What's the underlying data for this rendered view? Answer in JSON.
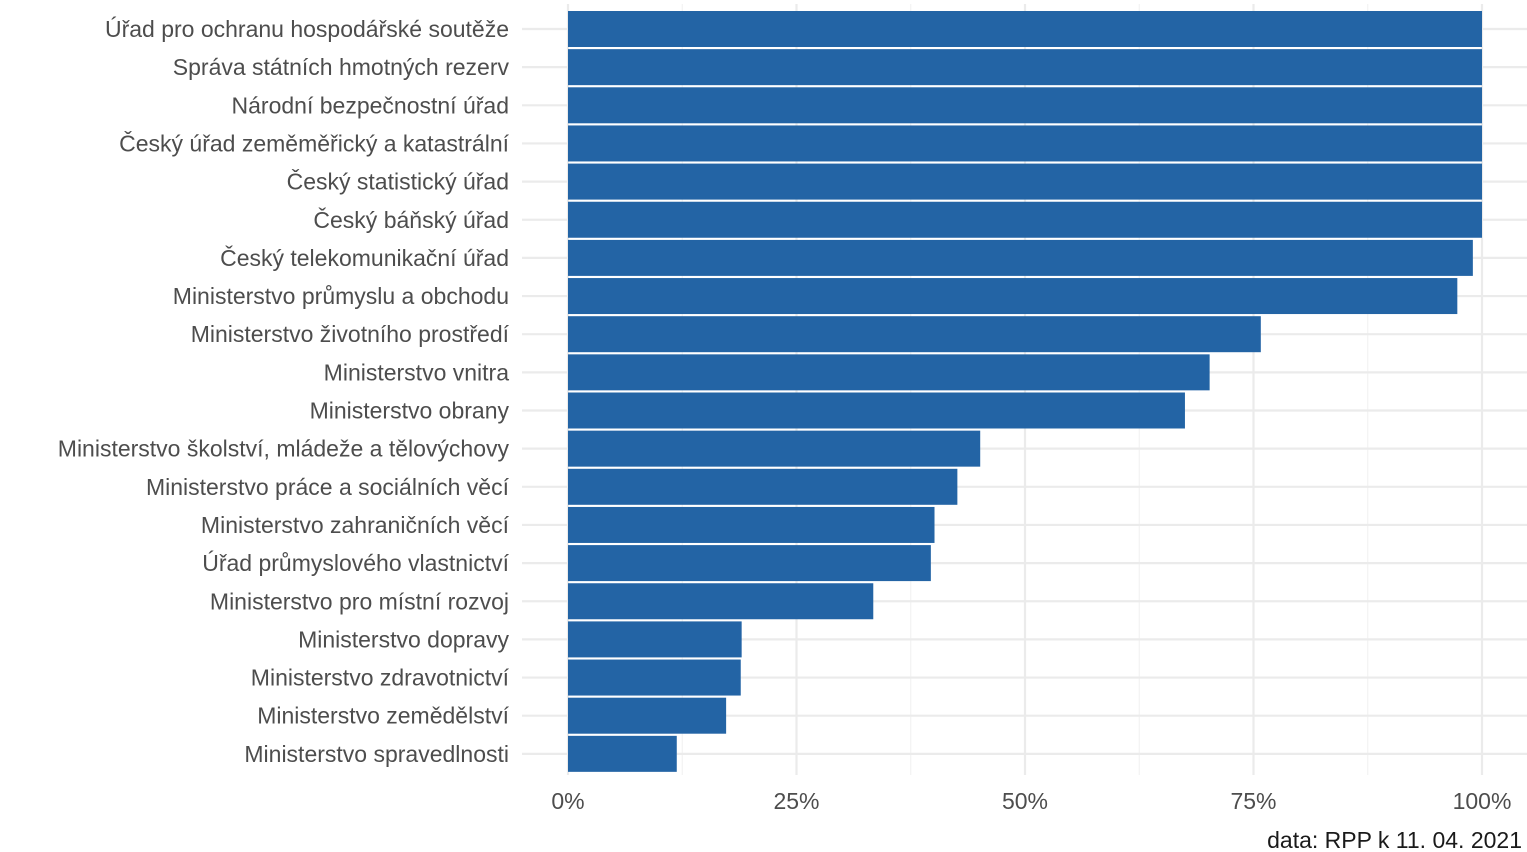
{
  "chart_data": {
    "type": "bar",
    "orientation": "horizontal",
    "categories": [
      "Úřad pro ochranu hospodářské soutěže",
      "Správa státních hmotných rezerv",
      "Národní bezpečnostní úřad",
      "Český úřad zeměměřický a katastrální",
      "Český statistický úřad",
      "Český báňský úřad",
      "Český telekomunikační úřad",
      "Ministerstvo průmyslu a obchodu",
      "Ministerstvo životního prostředí",
      "Ministerstvo vnitra",
      "Ministerstvo obrany",
      "Ministerstvo školství, mládeže a tělovýchovy",
      "Ministerstvo práce a sociálních věcí",
      "Ministerstvo zahraničních věcí",
      "Úřad průmyslového vlastnictví",
      "Ministerstvo pro místní rozvoj",
      "Ministerstvo dopravy",
      "Ministerstvo zdravotnictví",
      "Ministerstvo zemědělství",
      "Ministerstvo spravedlnosti"
    ],
    "values": [
      1.0,
      1.0,
      1.0,
      1.0,
      1.0,
      1.0,
      0.99,
      0.973,
      0.758,
      0.702,
      0.675,
      0.451,
      0.426,
      0.401,
      0.397,
      0.334,
      0.19,
      0.189,
      0.173,
      0.119
    ],
    "xlim": [
      0,
      1
    ],
    "x_ticks": [
      0,
      0.25,
      0.5,
      0.75,
      1.0
    ],
    "x_tick_labels": [
      "0%",
      "25%",
      "50%",
      "75%",
      "100%"
    ],
    "title": "",
    "xlabel": "",
    "ylabel": "",
    "caption": "data: RPP k 11. 04. 2021",
    "grid": true,
    "legend": "none",
    "bar_color": "#2364a5"
  }
}
